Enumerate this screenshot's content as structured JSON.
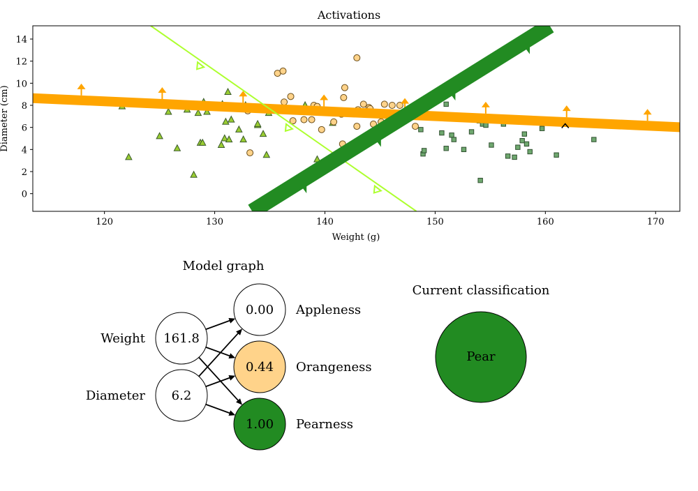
{
  "chart_data": [
    {
      "type": "scatter",
      "title": "Activations",
      "xlabel": "Weight (g)",
      "ylabel": "Diameter (cm)",
      "xlim": [
        113.5,
        172.2
      ],
      "ylim": [
        -1.6,
        15.2
      ],
      "x_ticks": [
        120,
        130,
        140,
        150,
        160,
        170
      ],
      "y_ticks": [
        0,
        2,
        4,
        6,
        8,
        10,
        12,
        14
      ],
      "series": [
        {
          "marker": "triangle",
          "color": "#9acd32",
          "points": [
            [
              121.6,
              7.9
            ],
            [
              122.2,
              3.3
            ],
            [
              125.0,
              5.2
            ],
            [
              125.8,
              7.4
            ],
            [
              126.6,
              4.1
            ],
            [
              127.5,
              7.6
            ],
            [
              128.1,
              1.7
            ],
            [
              128.5,
              7.3
            ],
            [
              128.7,
              4.6
            ],
            [
              128.9,
              4.6
            ],
            [
              129.0,
              8.3
            ],
            [
              129.3,
              7.4
            ],
            [
              130.4,
              7.8
            ],
            [
              130.6,
              4.4
            ],
            [
              130.7,
              8.1
            ],
            [
              130.9,
              5.0
            ],
            [
              131.0,
              6.5
            ],
            [
              131.2,
              9.2
            ],
            [
              131.3,
              4.9
            ],
            [
              131.5,
              6.7
            ],
            [
              132.2,
              5.8
            ],
            [
              132.6,
              4.9
            ],
            [
              132.8,
              8.0
            ],
            [
              133.9,
              6.2
            ],
            [
              133.9,
              6.3
            ],
            [
              134.4,
              5.4
            ],
            [
              134.7,
              3.5
            ],
            [
              134.9,
              7.3
            ],
            [
              138.2,
              8.0
            ],
            [
              139.3,
              3.1
            ],
            [
              140.7,
              6.4
            ]
          ]
        },
        {
          "marker": "circle",
          "color": "#ffd38a",
          "points": [
            [
              133.0,
              7.5
            ],
            [
              133.2,
              3.7
            ],
            [
              135.7,
              10.9
            ],
            [
              136.2,
              11.1
            ],
            [
              136.3,
              8.3
            ],
            [
              136.7,
              7.7
            ],
            [
              136.9,
              8.8
            ],
            [
              137.1,
              6.6
            ],
            [
              138.1,
              6.7
            ],
            [
              138.8,
              6.7
            ],
            [
              139.0,
              8.0
            ],
            [
              139.3,
              7.9
            ],
            [
              139.7,
              5.8
            ],
            [
              140.8,
              6.5
            ],
            [
              141.5,
              7.2
            ],
            [
              141.6,
              4.5
            ],
            [
              141.7,
              8.7
            ],
            [
              141.8,
              9.6
            ],
            [
              142.9,
              12.3
            ],
            [
              142.9,
              6.1
            ],
            [
              143.0,
              7.6
            ],
            [
              143.5,
              8.1
            ],
            [
              144.0,
              7.8
            ],
            [
              144.1,
              7.7
            ],
            [
              144.4,
              6.3
            ],
            [
              145.1,
              6.5
            ],
            [
              145.4,
              8.1
            ],
            [
              146.1,
              8.0
            ],
            [
              146.8,
              8.0
            ],
            [
              148.2,
              6.1
            ]
          ]
        },
        {
          "marker": "square",
          "color": "#6fa86f",
          "points": [
            [
              148.7,
              5.8
            ],
            [
              148.9,
              3.6
            ],
            [
              149.0,
              3.9
            ],
            [
              150.6,
              5.5
            ],
            [
              151.0,
              4.1
            ],
            [
              151.0,
              8.1
            ],
            [
              151.5,
              5.3
            ],
            [
              151.7,
              4.9
            ],
            [
              152.6,
              4.0
            ],
            [
              153.3,
              5.6
            ],
            [
              154.0,
              6.6
            ],
            [
              154.1,
              1.2
            ],
            [
              154.3,
              6.3
            ],
            [
              154.6,
              6.2
            ],
            [
              155.1,
              4.4
            ],
            [
              156.2,
              6.3
            ],
            [
              156.6,
              3.4
            ],
            [
              157.2,
              3.3
            ],
            [
              157.5,
              4.2
            ],
            [
              157.9,
              4.8
            ],
            [
              158.1,
              5.4
            ],
            [
              158.3,
              4.5
            ],
            [
              158.6,
              3.8
            ],
            [
              159.7,
              5.9
            ],
            [
              161.0,
              3.5
            ],
            [
              164.4,
              4.9
            ]
          ]
        }
      ],
      "lines": [
        {
          "color": "#ffa500",
          "p1": [
            113.5,
            8.65
          ],
          "p2": [
            172.2,
            6.02
          ],
          "arrows": "up"
        },
        {
          "color": "#adff2f",
          "p1": [
            124.2,
            15.2
          ],
          "p2": [
            148.3,
            -1.6
          ],
          "arrows": "down-left"
        },
        {
          "color": "#228b22",
          "p1": [
            133.4,
            -1.6
          ],
          "p2": [
            160.4,
            15.2
          ],
          "arrows": "down-right"
        }
      ],
      "marker_point": [
        161.8,
        6.2
      ]
    }
  ],
  "model_graph": {
    "title": "Model graph",
    "inputs": [
      {
        "label": "Weight",
        "value": "161.8"
      },
      {
        "label": "Diameter",
        "value": "6.2"
      }
    ],
    "outputs": [
      {
        "label": "Appleness",
        "value": "0.00",
        "color": "#ffffff"
      },
      {
        "label": "Orangeness",
        "value": "0.44",
        "color": "#ffd38a"
      },
      {
        "label": "Pearness",
        "value": "1.00",
        "color": "#228b22"
      }
    ]
  },
  "classification": {
    "title": "Current classification",
    "label": "Pear",
    "color": "#228b22"
  }
}
